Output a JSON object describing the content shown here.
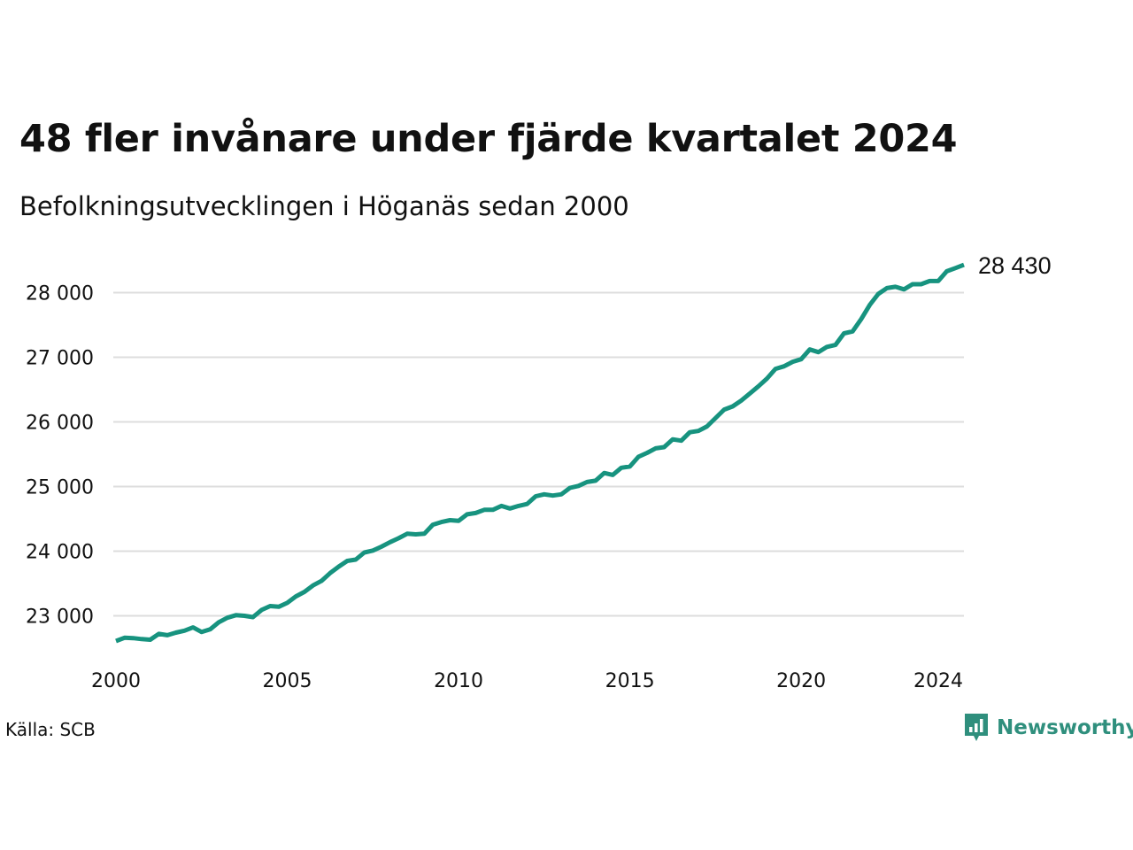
{
  "title": "48 fler invånare under fjärde kvartalet 2024",
  "subtitle": "Befolkningsutvecklingen i Höganäs sedan 2000",
  "source": "Källa: SCB",
  "brand": {
    "name": "Newsworthy",
    "icon": "newsworthy-logo-icon"
  },
  "colors": {
    "line": "#17937f",
    "grid": "#dddddd",
    "brand": "#2f8f7d"
  },
  "chart_data": {
    "type": "line",
    "title": "48 fler invånare under fjärde kvartalet 2024",
    "subtitle": "Befolkningsutvecklingen i Höganäs sedan 2000",
    "xlabel": "",
    "ylabel": "",
    "xlim": [
      2000,
      2024.75
    ],
    "ylim": [
      22500,
      28500
    ],
    "grid": true,
    "y_ticks": [
      23000,
      24000,
      25000,
      26000,
      27000,
      28000
    ],
    "y_tick_labels": [
      "23 000",
      "24 000",
      "25 000",
      "26 000",
      "27 000",
      "28 000"
    ],
    "x_ticks": [
      2000,
      2005,
      2010,
      2015,
      2020,
      2024
    ],
    "x_tick_labels": [
      "2000",
      "2005",
      "2010",
      "2015",
      "2020",
      "2024"
    ],
    "end_label": "28 430",
    "series": [
      {
        "color": "#17937f",
        "x": [
          2000.0,
          2000.25,
          2000.5,
          2000.75,
          2001.0,
          2001.25,
          2001.5,
          2001.75,
          2002.0,
          2002.25,
          2002.5,
          2002.75,
          2003.0,
          2003.25,
          2003.5,
          2003.75,
          2004.0,
          2004.25,
          2004.5,
          2004.75,
          2005.0,
          2005.25,
          2005.5,
          2005.75,
          2006.0,
          2006.25,
          2006.5,
          2006.75,
          2007.0,
          2007.25,
          2007.5,
          2007.75,
          2008.0,
          2008.25,
          2008.5,
          2008.75,
          2009.0,
          2009.25,
          2009.5,
          2009.75,
          2010.0,
          2010.25,
          2010.5,
          2010.75,
          2011.0,
          2011.25,
          2011.5,
          2011.75,
          2012.0,
          2012.25,
          2012.5,
          2012.75,
          2013.0,
          2013.25,
          2013.5,
          2013.75,
          2014.0,
          2014.25,
          2014.5,
          2014.75,
          2015.0,
          2015.25,
          2015.5,
          2015.75,
          2016.0,
          2016.25,
          2016.5,
          2016.75,
          2017.0,
          2017.25,
          2017.5,
          2017.75,
          2018.0,
          2018.25,
          2018.5,
          2018.75,
          2019.0,
          2019.25,
          2019.5,
          2019.75,
          2020.0,
          2020.25,
          2020.5,
          2020.75,
          2021.0,
          2021.25,
          2021.5,
          2021.75,
          2022.0,
          2022.25,
          2022.5,
          2022.75,
          2023.0,
          2023.25,
          2023.5,
          2023.75,
          2024.0,
          2024.25,
          2024.5,
          2024.75
        ],
        "values": [
          22610,
          22660,
          22655,
          22640,
          22630,
          22720,
          22700,
          22740,
          22770,
          22820,
          22750,
          22790,
          22900,
          22970,
          23010,
          23000,
          22980,
          23090,
          23150,
          23140,
          23200,
          23300,
          23370,
          23470,
          23540,
          23660,
          23760,
          23850,
          23870,
          23980,
          24010,
          24070,
          24140,
          24200,
          24270,
          24260,
          24270,
          24410,
          24450,
          24480,
          24470,
          24570,
          24590,
          24640,
          24640,
          24700,
          24660,
          24700,
          24730,
          24850,
          24880,
          24860,
          24880,
          24980,
          25010,
          25070,
          25090,
          25210,
          25180,
          25290,
          25310,
          25460,
          25520,
          25590,
          25610,
          25730,
          25710,
          25840,
          25860,
          25930,
          26060,
          26190,
          26240,
          26330,
          26440,
          26550,
          26670,
          26820,
          26860,
          26930,
          26970,
          27120,
          27080,
          27160,
          27190,
          27370,
          27400,
          27590,
          27810,
          27980,
          28070,
          28090,
          28050,
          28130,
          28130,
          28180,
          28180,
          28330,
          28380,
          28430
        ]
      }
    ]
  }
}
